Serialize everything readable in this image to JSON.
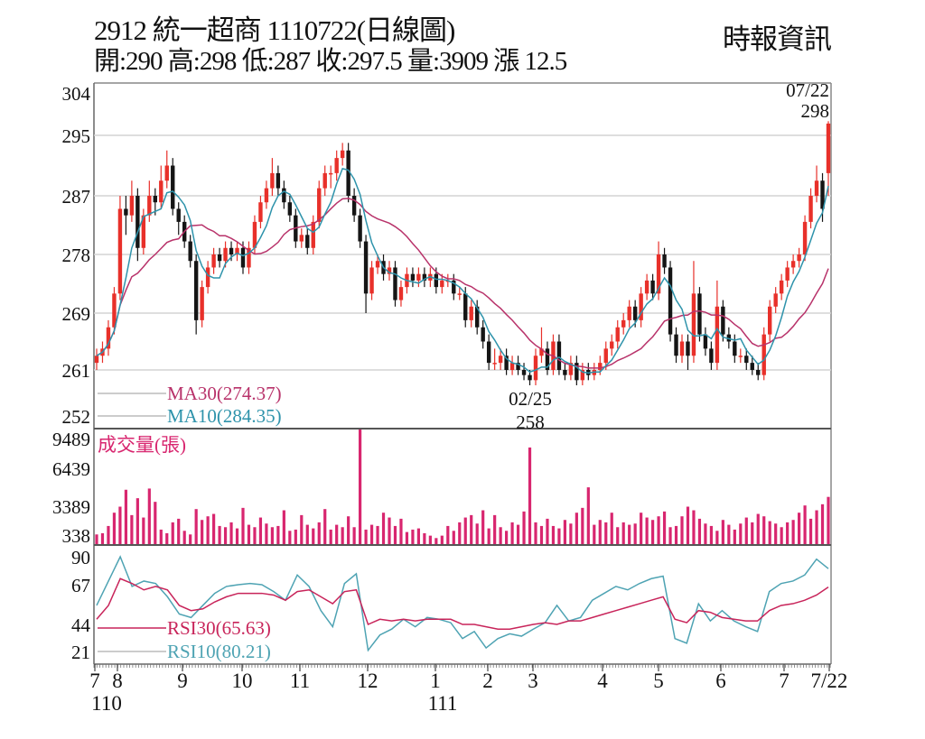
{
  "header": {
    "title": "2912  統一超商 1110722(日線圖)",
    "quote": "開:290 高:298 低:287 收:297.5 量:3909 漲 12.5",
    "source": "時報資訊"
  },
  "colors": {
    "up": "#e8302a",
    "down": "#151515",
    "ma30": "#b8326a",
    "ma10": "#2e93ab",
    "volume": "#d8266f",
    "rsi30": "#c8245a",
    "rsi10": "#4ea3b3",
    "grid": "#d4d4d4"
  },
  "chart_data": [
    {
      "type": "candlestick",
      "panel": "price",
      "y_ticks": [
        304,
        295,
        287,
        278,
        269,
        261,
        252
      ],
      "ylim": [
        252,
        304
      ],
      "grid": true,
      "annotations": [
        {
          "date": "07/22",
          "value": "298"
        },
        {
          "date": "02/25",
          "value": "258"
        }
      ],
      "legend": [
        {
          "label": "MA30(274.37)",
          "series": "ma30"
        },
        {
          "label": "MA10(284.35)",
          "series": "ma10"
        }
      ],
      "candles_ohlc": [
        [
          262,
          264,
          261,
          263
        ],
        [
          263,
          265,
          262,
          264
        ],
        [
          264,
          268,
          263,
          267
        ],
        [
          267,
          273,
          266,
          272
        ],
        [
          272,
          287,
          271,
          285
        ],
        [
          285,
          287,
          281,
          284
        ],
        [
          284,
          289,
          283,
          287
        ],
        [
          287,
          288,
          277,
          279
        ],
        [
          279,
          285,
          278,
          284
        ],
        [
          284,
          289,
          283,
          287
        ],
        [
          287,
          288,
          284,
          286
        ],
        [
          286,
          291,
          285,
          289
        ],
        [
          289,
          293,
          288,
          291
        ],
        [
          291,
          292,
          284,
          285
        ],
        [
          285,
          286,
          281,
          283
        ],
        [
          283,
          284,
          279,
          280
        ],
        [
          280,
          281,
          276,
          277
        ],
        [
          277,
          278,
          266,
          268
        ],
        [
          268,
          274,
          267,
          273
        ],
        [
          273,
          277,
          272,
          276
        ],
        [
          276,
          279,
          275,
          278
        ],
        [
          278,
          279,
          276,
          277
        ],
        [
          277,
          280,
          276,
          279
        ],
        [
          279,
          280,
          277,
          278
        ],
        [
          278,
          280,
          277,
          279
        ],
        [
          279,
          280,
          275,
          276
        ],
        [
          276,
          280,
          275,
          279
        ],
        [
          279,
          284,
          278,
          283
        ],
        [
          283,
          287,
          282,
          286
        ],
        [
          286,
          289,
          285,
          288
        ],
        [
          288,
          292,
          287,
          290
        ],
        [
          290,
          291,
          287,
          288
        ],
        [
          288,
          289,
          285,
          286
        ],
        [
          286,
          287,
          283,
          284
        ],
        [
          284,
          285,
          279,
          280
        ],
        [
          280,
          282,
          279,
          281
        ],
        [
          281,
          282,
          278,
          279
        ],
        [
          279,
          284,
          278,
          283
        ],
        [
          283,
          289,
          282,
          288
        ],
        [
          288,
          291,
          287,
          290
        ],
        [
          290,
          291,
          288,
          290
        ],
        [
          290,
          293,
          289,
          292
        ],
        [
          292,
          294,
          291,
          293
        ],
        [
          293,
          294,
          286,
          287
        ],
        [
          287,
          288,
          283,
          284
        ],
        [
          284,
          285,
          279,
          280
        ],
        [
          280,
          281,
          269,
          272
        ],
        [
          272,
          277,
          271,
          276
        ],
        [
          276,
          278,
          275,
          277
        ],
        [
          277,
          278,
          274,
          275
        ],
        [
          275,
          277,
          274,
          276
        ],
        [
          276,
          277,
          270,
          271
        ],
        [
          271,
          274,
          270,
          273
        ],
        [
          273,
          276,
          272,
          275
        ],
        [
          275,
          276,
          273,
          274
        ],
        [
          274,
          276,
          273,
          275
        ],
        [
          275,
          276,
          273,
          274
        ],
        [
          274,
          276,
          273,
          275
        ],
        [
          275,
          276,
          272,
          273
        ],
        [
          273,
          275,
          272,
          274
        ],
        [
          274,
          275,
          273,
          274
        ],
        [
          274,
          275,
          271,
          272
        ],
        [
          272,
          273,
          271,
          272
        ],
        [
          272,
          273,
          267,
          268
        ],
        [
          268,
          271,
          267,
          270
        ],
        [
          270,
          271,
          266,
          267
        ],
        [
          267,
          268,
          264,
          265
        ],
        [
          265,
          266,
          261,
          262
        ],
        [
          262,
          264,
          261,
          262
        ],
        [
          262,
          264,
          261,
          263
        ],
        [
          263,
          264,
          260,
          261
        ],
        [
          261,
          263,
          260,
          262
        ],
        [
          262,
          263,
          260,
          261
        ],
        [
          261,
          262,
          259,
          260
        ],
        [
          260,
          261,
          258,
          259
        ],
        [
          259,
          264,
          258,
          263
        ],
        [
          263,
          267,
          262,
          264
        ],
        [
          264,
          265,
          260,
          261
        ],
        [
          261,
          266,
          260,
          265
        ],
        [
          265,
          266,
          260,
          261
        ],
        [
          261,
          262,
          259,
          260
        ],
        [
          260,
          263,
          259,
          262
        ],
        [
          262,
          263,
          258,
          259
        ],
        [
          259,
          262,
          258,
          261
        ],
        [
          261,
          262,
          259,
          260
        ],
        [
          260,
          262,
          259,
          261
        ],
        [
          261,
          263,
          260,
          262
        ],
        [
          262,
          265,
          261,
          264
        ],
        [
          264,
          266,
          263,
          265
        ],
        [
          265,
          268,
          264,
          267
        ],
        [
          267,
          269,
          266,
          268
        ],
        [
          268,
          271,
          267,
          270
        ],
        [
          270,
          271,
          267,
          268
        ],
        [
          268,
          273,
          267,
          272
        ],
        [
          272,
          275,
          271,
          274
        ],
        [
          274,
          275,
          271,
          272
        ],
        [
          272,
          280,
          271,
          278
        ],
        [
          278,
          279,
          275,
          276
        ],
        [
          276,
          277,
          265,
          266
        ],
        [
          266,
          267,
          262,
          263
        ],
        [
          263,
          266,
          262,
          265
        ],
        [
          265,
          266,
          261,
          263
        ],
        [
          263,
          277,
          262,
          272
        ],
        [
          272,
          273,
          265,
          266
        ],
        [
          266,
          267,
          263,
          264
        ],
        [
          264,
          265,
          261,
          262
        ],
        [
          262,
          274,
          261,
          270
        ],
        [
          270,
          271,
          265,
          266
        ],
        [
          266,
          267,
          264,
          265
        ],
        [
          265,
          266,
          262,
          263
        ],
        [
          263,
          264,
          262,
          263
        ],
        [
          263,
          264,
          261,
          262
        ],
        [
          262,
          263,
          260,
          261
        ],
        [
          261,
          262,
          259,
          260
        ],
        [
          260,
          267,
          259,
          266
        ],
        [
          266,
          271,
          265,
          270
        ],
        [
          270,
          273,
          269,
          272
        ],
        [
          272,
          275,
          271,
          274
        ],
        [
          274,
          277,
          273,
          276
        ],
        [
          276,
          278,
          275,
          277
        ],
        [
          277,
          279,
          276,
          278
        ],
        [
          278,
          284,
          277,
          283
        ],
        [
          283,
          288,
          282,
          287
        ],
        [
          287,
          291,
          286,
          289
        ],
        [
          289,
          290,
          283,
          285
        ],
        [
          290,
          298,
          287,
          297.5
        ]
      ]
    },
    {
      "type": "bar",
      "panel": "volume",
      "title": "成交量(張)",
      "y_ticks": [
        9489,
        6439,
        3389,
        338
      ],
      "ylim": [
        0,
        9489
      ],
      "values": [
        800,
        900,
        1500,
        2600,
        3100,
        4500,
        2400,
        3800,
        2200,
        4600,
        3500,
        1200,
        900,
        1800,
        2100,
        1100,
        800,
        2900,
        2000,
        2300,
        2500,
        1500,
        1400,
        1800,
        1300,
        3000,
        1600,
        1400,
        2200,
        1700,
        1400,
        1500,
        2800,
        1100,
        1200,
        2400,
        1600,
        1300,
        1800,
        2900,
        1200,
        1600,
        1400,
        2300,
        1400,
        9489,
        1200,
        1600,
        1500,
        2600,
        2200,
        1500,
        2100,
        1000,
        1200,
        1300,
        900,
        700,
        500,
        700,
        1500,
        1100,
        1800,
        2200,
        2400,
        1700,
        2800,
        1300,
        2400,
        1400,
        1100,
        1800,
        1600,
        2700,
        8000,
        1800,
        1500,
        2100,
        1500,
        1300,
        2000,
        1700,
        2600,
        3000,
        4700,
        1600,
        2000,
        1800,
        2600,
        1400,
        1800,
        1600,
        1700,
        2600,
        2200,
        2000,
        2300,
        2700,
        1400,
        1500,
        2300,
        3100,
        2800,
        2100,
        1700,
        1500,
        1100,
        2000,
        1600,
        1200,
        1700,
        2200,
        1800,
        2500,
        2300,
        1900,
        1700,
        1400,
        1800,
        2000,
        2600,
        3200,
        2100,
        2800,
        3300,
        3909
      ]
    },
    {
      "type": "line",
      "panel": "rsi",
      "y_ticks": [
        90,
        67,
        44,
        21
      ],
      "legend": [
        {
          "label": "RSI30(65.63)",
          "series": "rsi30"
        },
        {
          "label": "RSI10(80.21)",
          "series": "rsi10"
        }
      ],
      "series": [
        {
          "name": "RSI30",
          "values": [
            47,
            55,
            72,
            68,
            64,
            66,
            64,
            55,
            52,
            53,
            57,
            60,
            62,
            62,
            62,
            61,
            58,
            63,
            64,
            60,
            56,
            63,
            64,
            44,
            47,
            46,
            47,
            46,
            47,
            47,
            47,
            44,
            44,
            42,
            40,
            40,
            42,
            44,
            45,
            44,
            46,
            46,
            48,
            50,
            52,
            54,
            56,
            58,
            60,
            47,
            45,
            52,
            51,
            48,
            47,
            46,
            46,
            52,
            55,
            56,
            58,
            61,
            65.63
          ]
        },
        {
          "name": "RSI10",
          "values": [
            55,
            70,
            90,
            66,
            70,
            68,
            60,
            50,
            48,
            55,
            62,
            66,
            67,
            68,
            67,
            63,
            58,
            75,
            66,
            52,
            42,
            68,
            76,
            22,
            35,
            40,
            47,
            42,
            48,
            47,
            45,
            32,
            38,
            24,
            32,
            36,
            34,
            40,
            45,
            55,
            46,
            48,
            58,
            62,
            66,
            64,
            68,
            72,
            74,
            32,
            28,
            56,
            46,
            52,
            46,
            42,
            38,
            63,
            68,
            70,
            75,
            88,
            80.21
          ]
        }
      ]
    }
  ],
  "x_axis": {
    "months": [
      "7",
      "8",
      "9",
      "10",
      "11",
      "12",
      "1",
      "2",
      "3",
      "4",
      "5",
      "6",
      "7",
      "7/22"
    ],
    "years": [
      "110",
      "111"
    ]
  }
}
